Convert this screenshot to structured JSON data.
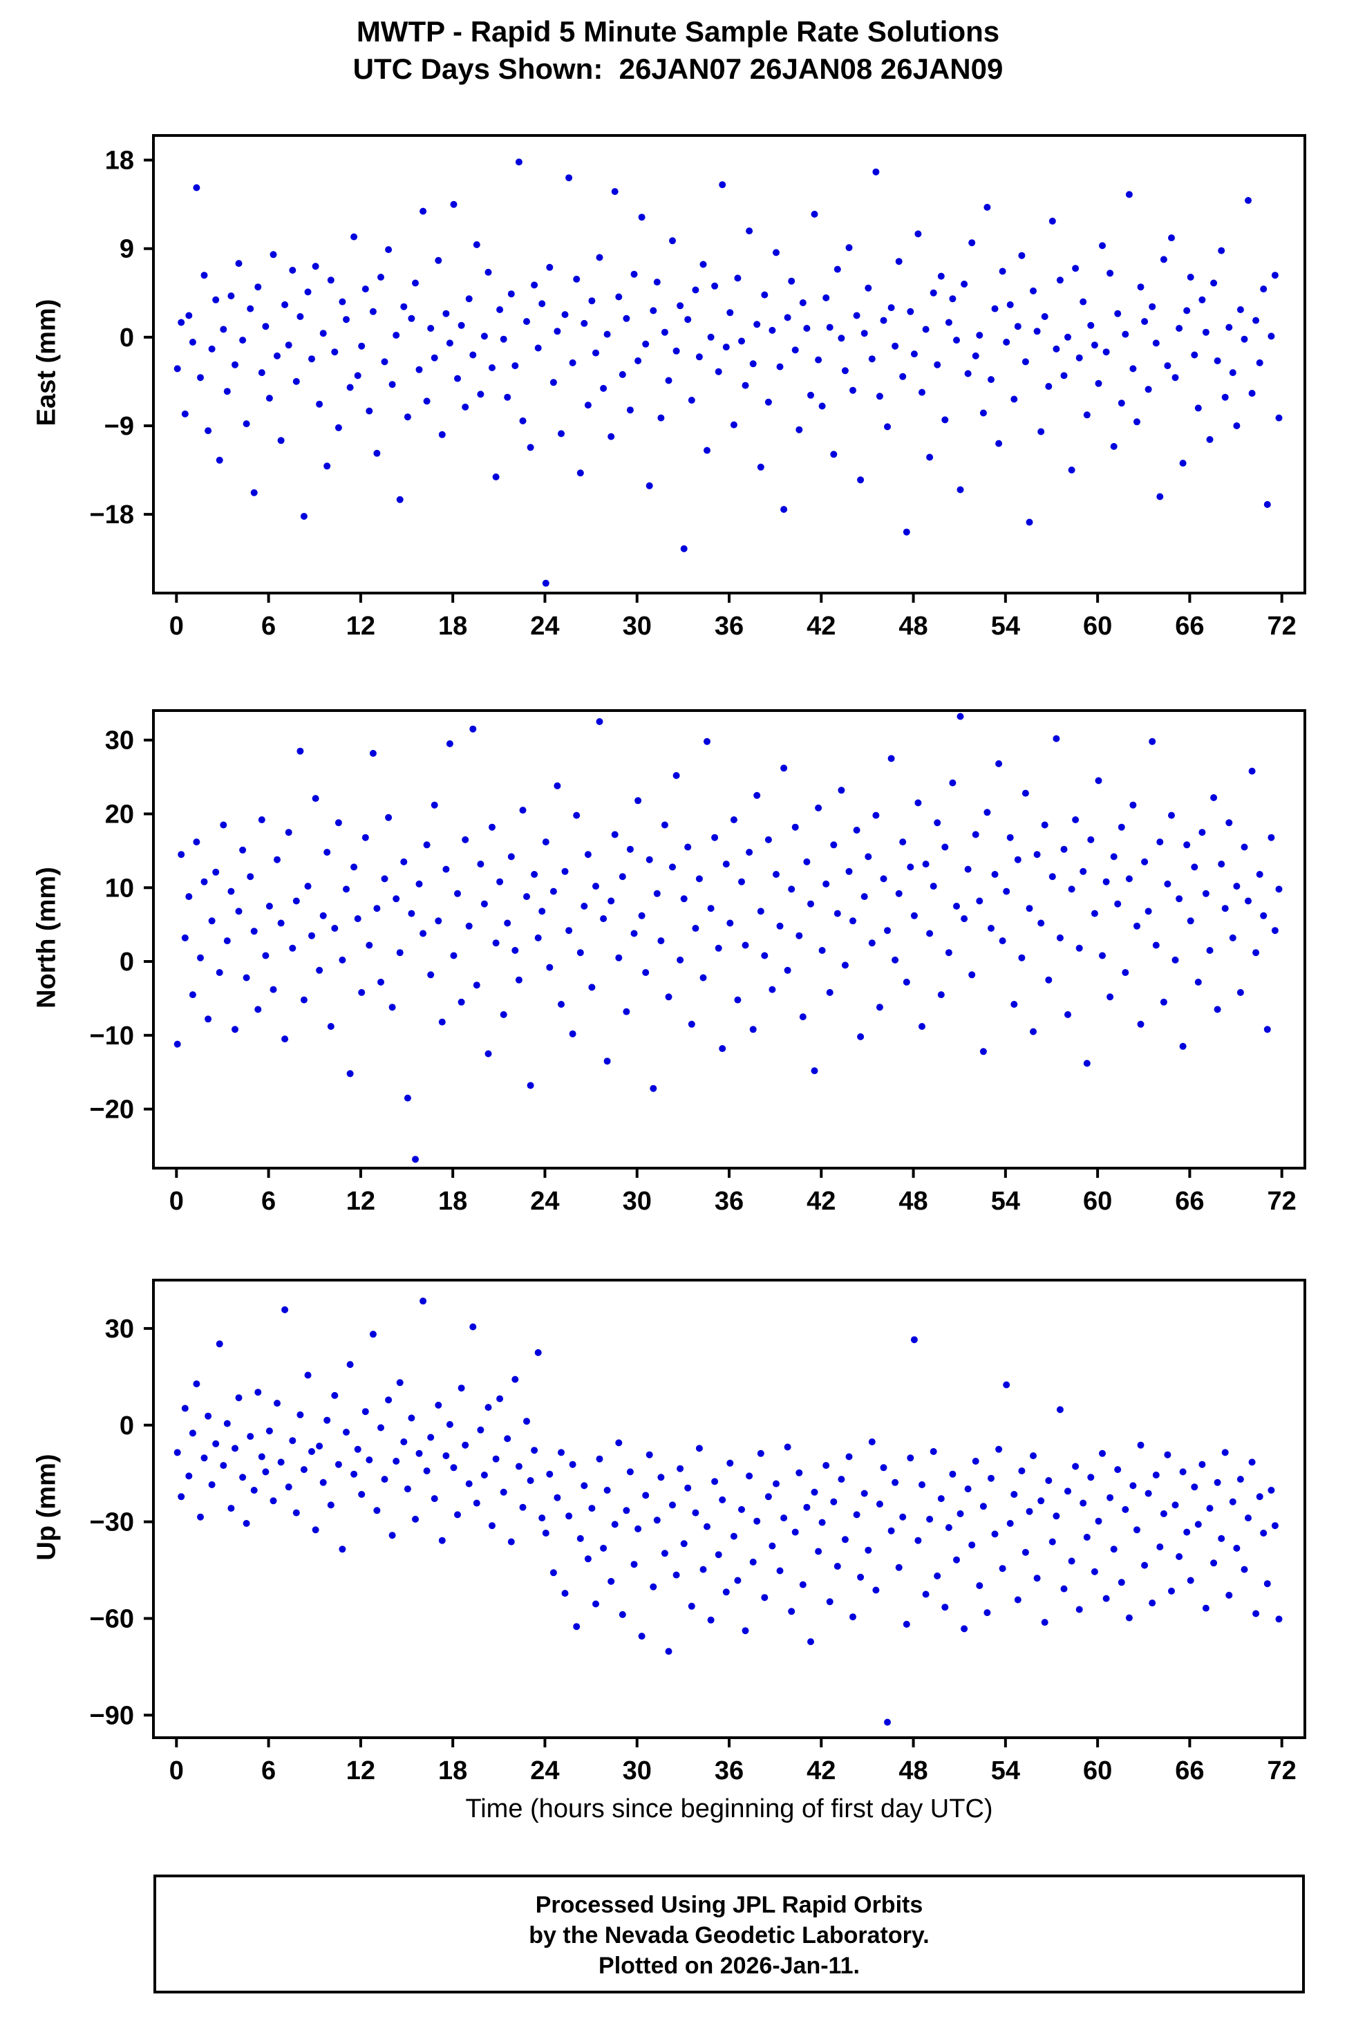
{
  "title": {
    "line1": "MWTP - Rapid 5 Minute Sample Rate Solutions",
    "line2": "UTC Days Shown:  26JAN07 26JAN08 26JAN09"
  },
  "xlabel": "Time (hours since beginning of first day UTC)",
  "footer": {
    "line1": "Processed Using JPL Rapid Orbits",
    "line2": "by the Nevada Geodetic Laboratory.",
    "line3": "Plotted on 2026-Jan-11."
  },
  "point_color": "#0000dd",
  "chart_data": [
    {
      "type": "scatter",
      "name": "east",
      "ylabel": "East (mm)",
      "xlim": [
        -1.5,
        73.5
      ],
      "ylim": [
        -26,
        20.5
      ],
      "xticks": [
        0,
        6,
        12,
        18,
        24,
        30,
        36,
        42,
        48,
        54,
        60,
        66,
        72
      ],
      "yticks": [
        -18,
        -9,
        0,
        9,
        18
      ],
      "x_rule": {
        "start": 0.06,
        "step": 0.25,
        "count": 288
      },
      "y": [
        -3.2,
        1.5,
        -7.8,
        2.2,
        -0.5,
        15.2,
        -4.1,
        6.3,
        -9.5,
        -1.2,
        3.8,
        -12.5,
        0.8,
        -5.5,
        4.2,
        -2.8,
        7.5,
        -0.3,
        -8.8,
        2.9,
        -15.8,
        5.1,
        -3.6,
        1.1,
        -6.2,
        8.4,
        -1.9,
        -10.5,
        3.3,
        -0.8,
        6.8,
        -4.5,
        2.1,
        -18.2,
        4.6,
        -2.2,
        7.2,
        -6.8,
        0.4,
        -13.1,
        5.8,
        -1.5,
        -9.2,
        3.6,
        1.8,
        -5.1,
        10.2,
        -3.9,
        -0.9,
        4.9,
        -7.5,
        2.6,
        -11.8,
        6.1,
        -2.5,
        8.9,
        -4.8,
        0.2,
        -16.5,
        3.1,
        -8.1,
        1.9,
        5.5,
        -3.3,
        12.8,
        -6.5,
        0.9,
        -2.1,
        7.8,
        -9.9,
        2.4,
        -0.6,
        13.5,
        -4.2,
        1.2,
        -7.1,
        3.9,
        -1.8,
        9.4,
        -5.8,
        0.1,
        6.6,
        -3.1,
        -14.2,
        2.8,
        -0.2,
        -6.1,
        4.4,
        -2.9,
        17.8,
        -8.5,
        1.6,
        -11.2,
        5.3,
        -1.1,
        3.4,
        -25.0,
        7.1,
        -4.6,
        0.6,
        -9.8,
        2.3,
        16.2,
        -2.6,
        5.9,
        -13.8,
        1.4,
        -6.9,
        3.7,
        -1.6,
        8.1,
        -5.2,
        0.3,
        -10.1,
        14.8,
        4.1,
        -3.8,
        1.9,
        -7.4,
        6.4,
        -2.4,
        12.2,
        -0.7,
        -15.1,
        2.7,
        5.6,
        -8.2,
        0.5,
        -4.4,
        9.8,
        -1.4,
        3.2,
        -21.5,
        1.8,
        -6.4,
        4.8,
        -2.0,
        7.4,
        -11.5,
        0.0,
        5.2,
        -3.5,
        15.5,
        -1.0,
        2.5,
        -8.9,
        6.0,
        -0.4,
        -4.9,
        10.8,
        -2.7,
        1.3,
        -13.2,
        4.3,
        -6.6,
        0.7,
        8.6,
        -3.0,
        -17.5,
        2.0,
        5.7,
        -1.3,
        -9.4,
        3.5,
        0.9,
        -5.9,
        12.5,
        -2.3,
        -7.0,
        4.0,
        1.0,
        -11.9,
        6.9,
        -0.1,
        -3.4,
        9.1,
        -5.4,
        2.2,
        -14.5,
        0.4,
        5.0,
        -2.2,
        16.8,
        -6.0,
        1.7,
        -9.1,
        3.0,
        -0.9,
        7.7,
        -4.0,
        -19.8,
        2.6,
        -1.7,
        10.5,
        -5.6,
        0.8,
        -12.2,
        4.5,
        -2.8,
        6.2,
        -8.4,
        1.5,
        3.9,
        -0.3,
        -15.5,
        5.4,
        -3.7,
        9.6,
        -1.9,
        0.2,
        -7.7,
        13.2,
        -4.3,
        2.9,
        -10.8,
        6.7,
        -0.5,
        3.3,
        -6.3,
        1.1,
        8.3,
        -2.5,
        -18.8,
        4.7,
        0.6,
        -9.6,
        2.1,
        -5.0,
        11.8,
        -1.2,
        5.8,
        -3.9,
        0.0,
        -13.5,
        7.0,
        -2.1,
        3.6,
        -7.9,
        1.2,
        -0.8,
        -4.7,
        9.3,
        -1.5,
        6.5,
        -11.1,
        2.4,
        -6.7,
        0.3,
        14.5,
        -3.2,
        -8.6,
        5.1,
        1.6,
        -5.3,
        3.1,
        -0.6,
        -16.2,
        7.9,
        -2.9,
        10.1,
        -4.1,
        0.9,
        -12.8,
        2.7,
        6.1,
        -1.8,
        -7.2,
        3.8,
        0.5,
        -10.4,
        5.5,
        -2.4,
        8.8,
        -6.1,
        1.0,
        -3.6,
        -9.0,
        2.8,
        -0.2,
        13.9,
        -5.7,
        1.7,
        -2.6,
        4.9,
        -17.0,
        0.1,
        6.3,
        -8.2
      ]
    },
    {
      "type": "scatter",
      "name": "north",
      "ylabel": "North (mm)",
      "xlim": [
        -1.5,
        73.5
      ],
      "ylim": [
        -28,
        34
      ],
      "xticks": [
        0,
        6,
        12,
        18,
        24,
        30,
        36,
        42,
        48,
        54,
        60,
        66,
        72
      ],
      "yticks": [
        -20,
        -10,
        0,
        10,
        20,
        30
      ],
      "x_rule": {
        "start": 0.06,
        "step": 0.25,
        "count": 288
      },
      "y": [
        -11.2,
        14.5,
        3.2,
        8.8,
        -4.5,
        16.2,
        0.5,
        10.8,
        -7.8,
        5.5,
        12.1,
        -1.5,
        18.5,
        2.8,
        9.5,
        -9.2,
        6.8,
        15.1,
        -2.2,
        11.5,
        4.1,
        -6.5,
        19.2,
        0.8,
        7.5,
        -3.8,
        13.8,
        5.2,
        -10.5,
        17.5,
        1.8,
        8.2,
        28.5,
        -5.2,
        10.2,
        3.5,
        22.1,
        -1.2,
        6.2,
        14.8,
        -8.8,
        4.5,
        18.8,
        0.2,
        9.8,
        -15.2,
        12.8,
        5.8,
        -4.2,
        16.8,
        2.2,
        28.2,
        7.2,
        -2.8,
        11.2,
        19.5,
        -6.2,
        8.5,
        1.2,
        13.5,
        -18.5,
        6.5,
        -26.8,
        10.5,
        3.8,
        15.8,
        -1.8,
        21.2,
        5.5,
        -8.2,
        12.5,
        29.5,
        0.8,
        9.2,
        -5.5,
        16.5,
        4.8,
        31.5,
        -3.2,
        13.2,
        7.8,
        -12.5,
        18.2,
        2.5,
        10.8,
        -7.2,
        5.2,
        14.2,
        1.5,
        -2.5,
        20.5,
        8.8,
        -16.8,
        11.8,
        3.2,
        6.8,
        16.2,
        -0.8,
        9.5,
        23.8,
        -5.8,
        12.2,
        4.2,
        -9.8,
        19.8,
        1.2,
        7.5,
        14.5,
        -3.5,
        10.2,
        32.5,
        5.8,
        -13.5,
        8.2,
        17.2,
        0.5,
        11.5,
        -6.8,
        15.2,
        3.8,
        21.8,
        6.2,
        -1.5,
        13.8,
        -17.2,
        9.2,
        2.8,
        18.5,
        -4.8,
        12.8,
        25.2,
        0.2,
        8.5,
        15.5,
        -8.5,
        4.5,
        11.2,
        -2.2,
        29.8,
        7.2,
        16.8,
        1.8,
        -11.8,
        13.2,
        5.2,
        19.2,
        -5.2,
        10.8,
        2.2,
        14.8,
        -9.2,
        22.5,
        6.8,
        0.8,
        16.5,
        -3.8,
        11.8,
        4.8,
        26.2,
        -1.2,
        9.8,
        18.2,
        3.5,
        -7.5,
        13.5,
        7.8,
        -14.8,
        20.8,
        1.5,
        10.5,
        -4.2,
        15.8,
        6.5,
        23.2,
        -0.5,
        12.2,
        5.5,
        17.8,
        -10.2,
        8.8,
        14.2,
        2.5,
        19.8,
        -6.2,
        11.2,
        4.2,
        27.5,
        0.2,
        9.2,
        16.2,
        -2.8,
        12.8,
        6.2,
        21.5,
        -8.8,
        13.2,
        3.8,
        10.2,
        18.8,
        -4.5,
        15.5,
        1.2,
        24.2,
        7.5,
        33.2,
        5.8,
        12.5,
        -1.8,
        17.2,
        8.2,
        -12.2,
        20.2,
        4.5,
        11.8,
        26.8,
        2.8,
        9.5,
        16.8,
        -5.8,
        13.8,
        0.5,
        22.8,
        7.2,
        -9.5,
        14.5,
        5.2,
        18.5,
        -2.5,
        11.5,
        30.2,
        3.2,
        15.2,
        -7.2,
        9.8,
        19.2,
        1.8,
        12.2,
        -13.8,
        16.5,
        6.5,
        24.5,
        0.8,
        10.8,
        -4.8,
        14.2,
        7.8,
        18.2,
        -1.5,
        11.2,
        21.2,
        4.8,
        -8.5,
        13.5,
        6.8,
        29.8,
        2.2,
        16.2,
        -5.5,
        10.5,
        19.8,
        0.2,
        8.5,
        -11.5,
        15.8,
        5.5,
        12.8,
        -2.8,
        17.5,
        9.2,
        1.5,
        22.2,
        -6.5,
        13.2,
        7.2,
        18.8,
        3.2,
        10.2,
        -4.2,
        15.5,
        8.2,
        25.8,
        1.2,
        11.8,
        6.2,
        -9.2,
        16.8,
        4.2,
        9.8
      ]
    },
    {
      "type": "scatter",
      "name": "up",
      "ylabel": "Up (mm)",
      "xlim": [
        -1.5,
        73.5
      ],
      "ylim": [
        -97,
        45
      ],
      "xticks": [
        0,
        6,
        12,
        18,
        24,
        30,
        36,
        42,
        48,
        54,
        60,
        66,
        72
      ],
      "yticks": [
        -90,
        -60,
        -30,
        0,
        30
      ],
      "x_rule": {
        "start": 0.06,
        "step": 0.25,
        "count": 288
      },
      "y": [
        -8.5,
        -22.2,
        5.2,
        -15.8,
        -2.5,
        12.8,
        -28.5,
        -10.2,
        2.8,
        -18.5,
        -5.8,
        25.2,
        -12.5,
        0.5,
        -25.8,
        -7.2,
        8.5,
        -16.2,
        -30.5,
        -3.5,
        -20.2,
        10.2,
        -9.8,
        -14.5,
        -1.8,
        -23.5,
        6.8,
        -11.5,
        35.8,
        -19.2,
        -4.8,
        -27.2,
        3.2,
        -13.8,
        15.5,
        -8.2,
        -32.5,
        -6.5,
        -17.8,
        1.5,
        -24.8,
        9.2,
        -12.2,
        -38.5,
        -2.2,
        18.8,
        -15.2,
        -7.5,
        -21.5,
        4.2,
        -10.8,
        28.2,
        -26.5,
        -0.8,
        -16.8,
        7.8,
        -34.2,
        -11.2,
        13.2,
        -5.2,
        -19.8,
        2.2,
        -29.2,
        -8.8,
        38.5,
        -14.2,
        -3.8,
        -22.8,
        6.2,
        -35.8,
        -9.5,
        0.2,
        -13.2,
        -27.8,
        11.5,
        -6.2,
        -18.2,
        30.5,
        -24.2,
        -1.5,
        -15.5,
        5.5,
        -31.2,
        -10.5,
        8.2,
        -20.8,
        -4.2,
        -36.2,
        14.2,
        -12.8,
        -25.5,
        1.2,
        -17.2,
        -7.8,
        22.5,
        -28.8,
        -33.5,
        -15.2,
        -45.8,
        -22.5,
        -8.5,
        -52.2,
        -28.2,
        -12.2,
        -62.5,
        -35.2,
        -18.8,
        -41.5,
        -25.8,
        -55.5,
        -10.5,
        -38.2,
        -20.2,
        -48.5,
        -30.8,
        -5.5,
        -58.8,
        -26.5,
        -14.5,
        -43.2,
        -32.2,
        -65.5,
        -21.8,
        -9.2,
        -50.2,
        -29.5,
        -16.2,
        -39.8,
        -70.2,
        -24.8,
        -46.5,
        -13.5,
        -36.8,
        -19.5,
        -56.2,
        -27.2,
        -7.2,
        -44.8,
        -31.5,
        -60.5,
        -17.5,
        -40.2,
        -23.2,
        -51.8,
        -11.8,
        -34.5,
        -48.2,
        -26.2,
        -63.8,
        -15.8,
        -42.5,
        -29.8,
        -8.8,
        -53.5,
        -22.2,
        -37.5,
        -18.2,
        -45.2,
        -28.8,
        -6.8,
        -57.8,
        -33.2,
        -14.8,
        -49.5,
        -25.5,
        -67.2,
        -20.8,
        -39.2,
        -30.2,
        -12.5,
        -54.8,
        -23.8,
        -43.8,
        -16.8,
        -35.5,
        -9.8,
        -59.5,
        -27.8,
        -47.2,
        -21.2,
        -38.8,
        -5.2,
        -51.2,
        -24.5,
        -13.2,
        -92.2,
        -32.8,
        -17.8,
        -44.2,
        -28.5,
        -61.8,
        -10.2,
        26.5,
        -35.8,
        -18.5,
        -52.5,
        -29.2,
        -8.2,
        -46.8,
        -22.8,
        -56.5,
        -31.8,
        -15.2,
        -41.8,
        -27.5,
        -63.2,
        -19.8,
        -37.2,
        -11.2,
        -49.8,
        -25.2,
        -58.2,
        -16.5,
        -33.8,
        -7.5,
        -44.5,
        12.5,
        -30.5,
        -21.5,
        -54.2,
        -14.2,
        -39.5,
        -26.8,
        -9.5,
        -47.5,
        -23.5,
        -61.2,
        -17.2,
        -36.2,
        -28.2,
        4.8,
        -50.8,
        -20.5,
        -42.2,
        -12.8,
        -57.2,
        -24.2,
        -34.8,
        -16.2,
        -45.5,
        -29.8,
        -8.8,
        -53.8,
        -22.5,
        -38.5,
        -13.8,
        -48.8,
        -26.2,
        -59.8,
        -18.8,
        -32.5,
        -6.2,
        -43.5,
        -21.2,
        -55.2,
        -15.5,
        -37.8,
        -27.5,
        -9.2,
        -51.5,
        -24.8,
        -40.8,
        -14.5,
        -33.2,
        -48.2,
        -19.2,
        -30.8,
        -12.2,
        -56.8,
        -25.8,
        -42.8,
        -17.8,
        -35.2,
        -8.5,
        -52.8,
        -23.8,
        -38.2,
        -16.8,
        -44.8,
        -28.8,
        -11.5,
        -58.5,
        -22.2,
        -33.5,
        -49.2,
        -20.2,
        -31.2,
        -60.2
      ]
    }
  ]
}
